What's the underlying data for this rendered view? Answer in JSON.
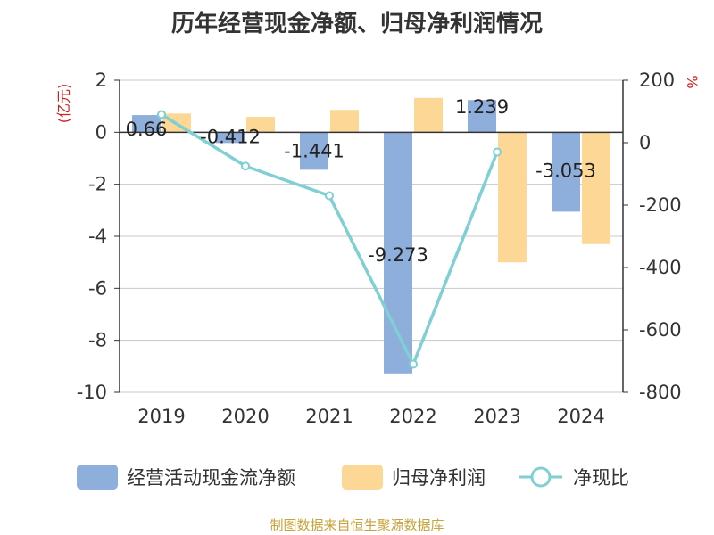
{
  "colors": {
    "cash_flow": "#8eaedb",
    "net_profit": "#fdd796",
    "ratio": "#7fcfd4",
    "axis_unit": "#d11f1f",
    "source": "#c9a23a"
  },
  "legend": {
    "cash_flow": "经营活动现金流净额",
    "net_profit": "归母净利润",
    "ratio": "净现比"
  },
  "source": "制图数据来自恒生聚源数据库",
  "chart_data": {
    "type": "bar",
    "title": "历年经营现金净额、归母净利润情况",
    "categories": [
      "2019",
      "2020",
      "2021",
      "2022",
      "2023",
      "2024"
    ],
    "left_axis": {
      "unit": "(亿元)",
      "ylim": [
        -10,
        2
      ],
      "ticks": [
        2,
        0,
        -2,
        -4,
        -6,
        -8,
        -10
      ]
    },
    "right_axis": {
      "unit": "%",
      "ylim": [
        -800,
        200
      ],
      "ticks": [
        200,
        0,
        -200,
        -400,
        -600,
        -800
      ]
    },
    "series": [
      {
        "name": "经营活动现金流净额",
        "kind": "bar",
        "axis": "left",
        "values": [
          0.66,
          -0.412,
          -1.441,
          -9.273,
          1.239,
          -3.053
        ],
        "labels": [
          "0.66",
          "-0.412",
          "-1.441",
          "-9.273",
          "1.239",
          "-3.053"
        ]
      },
      {
        "name": "归母净利润",
        "kind": "bar",
        "axis": "left",
        "values": [
          0.72,
          0.59,
          0.86,
          1.32,
          -5.0,
          -4.3
        ]
      },
      {
        "name": "净现比",
        "kind": "line",
        "axis": "right",
        "values": [
          90,
          -75,
          -170,
          -710,
          -30,
          null
        ]
      }
    ],
    "grid": true,
    "legend_position": "bottom"
  }
}
